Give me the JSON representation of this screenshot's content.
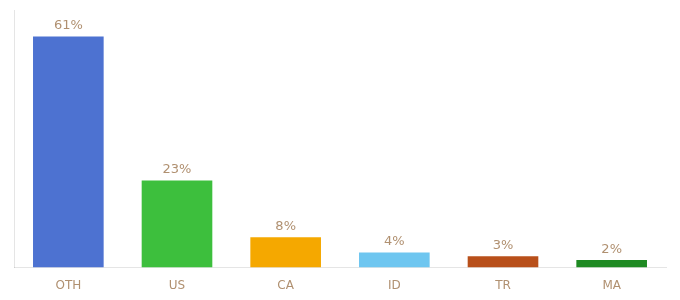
{
  "chart_data": {
    "type": "bar",
    "categories": [
      "OTH",
      "US",
      "CA",
      "ID",
      "TR",
      "MA"
    ],
    "values": [
      61,
      23,
      8,
      4,
      3,
      2
    ],
    "value_labels": [
      "61%",
      "23%",
      "8%",
      "4%",
      "3%",
      "2%"
    ],
    "colors": [
      "#4d72d1",
      "#3dbf3d",
      "#f5a800",
      "#6ec6f0",
      "#b84f1a",
      "#1e8a22"
    ],
    "ylim": [
      0,
      68
    ],
    "grid": false,
    "data_labels": true,
    "tick_labels": "x"
  }
}
